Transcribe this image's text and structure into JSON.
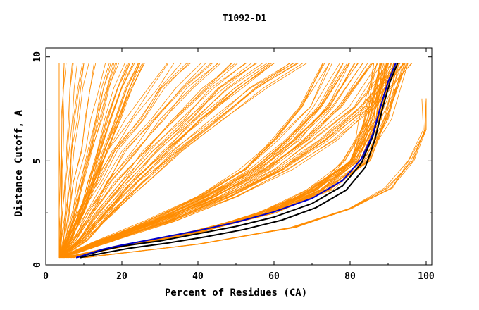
{
  "chart_data": {
    "type": "line",
    "title": "T1092-D1",
    "xlabel": "Percent of Residues (CA)",
    "ylabel": "Distance Cutoff, A",
    "xlim": [
      0,
      100
    ],
    "ylim": [
      0,
      10
    ],
    "x_ticks": [
      "0",
      "20",
      "40",
      "60",
      "80",
      "100"
    ],
    "y_ticks": [
      "0",
      "5",
      "10"
    ],
    "grid": false,
    "colors": {
      "models": "#ff8c00",
      "highlight_black": "#000000",
      "highlight_blue": "#0000cc"
    },
    "model_families": [
      {
        "name": "",
        "count": 40,
        "points": [
          [
            3.5,
            0.35
          ],
          [
            5,
            1.2
          ],
          [
            6.5,
            2.5
          ],
          [
            8,
            4
          ],
          [
            9.5,
            5.5
          ],
          [
            11,
            7
          ],
          [
            12.5,
            8.5
          ],
          [
            14,
            9.7
          ]
        ],
        "spread": [
          0.5,
          12
        ]
      },
      {
        "name": "",
        "count": 40,
        "points": [
          [
            3.5,
            0.35
          ],
          [
            8,
            1.2
          ],
          [
            13,
            2.5
          ],
          [
            19,
            4
          ],
          [
            26,
            5.5
          ],
          [
            34,
            7
          ],
          [
            42,
            8.5
          ],
          [
            50,
            9.7
          ]
        ],
        "spread": [
          1,
          18
        ]
      },
      {
        "name": "",
        "count": 40,
        "points": [
          [
            4,
            0.35
          ],
          [
            15,
            1.1
          ],
          [
            30,
            2.1
          ],
          [
            45,
            3.3
          ],
          [
            58,
            4.6
          ],
          [
            68,
            6
          ],
          [
            77,
            7.6
          ],
          [
            85,
            9.7
          ]
        ],
        "spread": [
          1,
          12
        ]
      },
      {
        "name": "",
        "count": 40,
        "points": [
          [
            6,
            0.35
          ],
          [
            20,
            0.9
          ],
          [
            40,
            1.6
          ],
          [
            58,
            2.5
          ],
          [
            72,
            3.6
          ],
          [
            82,
            5
          ],
          [
            87,
            7
          ],
          [
            91,
            9.7
          ]
        ],
        "spread": [
          1.5,
          4
        ]
      },
      {
        "name": "",
        "count": 6,
        "points": [
          [
            10,
            0.35
          ],
          [
            40,
            1.0
          ],
          [
            65,
            1.8
          ],
          [
            80,
            2.7
          ],
          [
            90,
            3.7
          ],
          [
            96,
            5
          ],
          [
            99,
            6.5
          ],
          [
            100,
            8
          ]
        ],
        "spread": [
          1,
          2
        ]
      }
    ],
    "highlight_series": [
      {
        "name": "",
        "color": "#000000",
        "points": [
          [
            8,
            0.35
          ],
          [
            15,
            0.7
          ],
          [
            20,
            0.9
          ],
          [
            30,
            1.15
          ],
          [
            40,
            1.5
          ],
          [
            50,
            1.85
          ],
          [
            60,
            2.3
          ],
          [
            70,
            2.95
          ],
          [
            78,
            3.8
          ],
          [
            83,
            4.9
          ],
          [
            86,
            6.2
          ],
          [
            88,
            7.6
          ],
          [
            90,
            8.8
          ],
          [
            92,
            9.7
          ]
        ]
      },
      {
        "name": "",
        "color": "#0000cc",
        "points": [
          [
            8,
            0.35
          ],
          [
            15,
            0.75
          ],
          [
            20,
            0.95
          ],
          [
            30,
            1.3
          ],
          [
            40,
            1.65
          ],
          [
            50,
            2.05
          ],
          [
            60,
            2.55
          ],
          [
            70,
            3.2
          ],
          [
            78,
            4.05
          ],
          [
            83,
            5.1
          ],
          [
            86,
            6.3
          ],
          [
            88,
            7.6
          ],
          [
            90,
            8.8
          ],
          [
            92,
            9.7
          ]
        ]
      },
      {
        "name": "",
        "color": "#000000",
        "points": [
          [
            9,
            0.35
          ],
          [
            16,
            0.6
          ],
          [
            22,
            0.8
          ],
          [
            32,
            1.05
          ],
          [
            42,
            1.35
          ],
          [
            52,
            1.7
          ],
          [
            62,
            2.15
          ],
          [
            71,
            2.75
          ],
          [
            79,
            3.6
          ],
          [
            84,
            4.7
          ],
          [
            86.5,
            6
          ],
          [
            88.5,
            7.5
          ],
          [
            90.5,
            8.8
          ],
          [
            92.5,
            9.7
          ]
        ]
      }
    ]
  }
}
